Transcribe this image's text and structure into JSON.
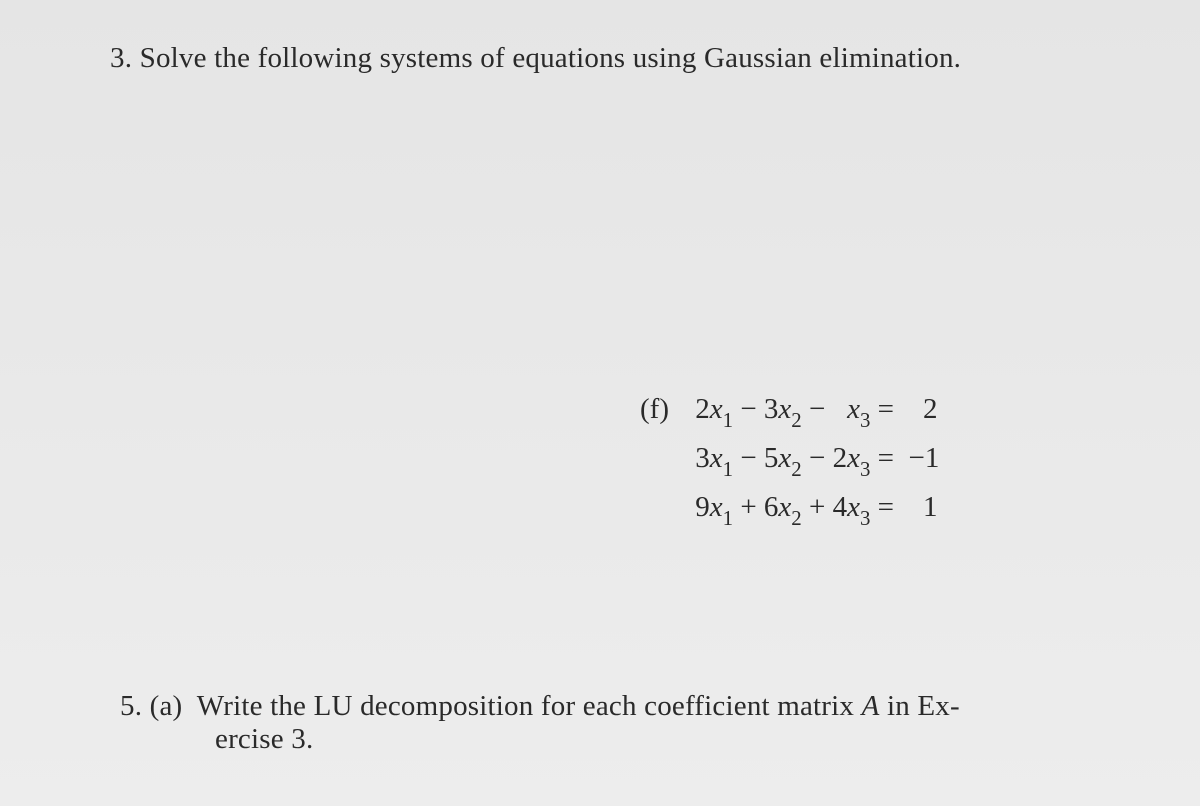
{
  "background_color": "#e8e8e8",
  "text_color": "#2a2a2a",
  "font_family": "Times New Roman",
  "base_fontsize": 29,
  "problem3": {
    "number": "3.",
    "text": "Solve the following systems of equations using Gaussian elimination."
  },
  "system": {
    "label": "(f)",
    "equations": [
      {
        "c1": "2",
        "v1": "x",
        "s1": "1",
        "op1": "−",
        "c2": "3",
        "v2": "x",
        "s2": "2",
        "op2": "−",
        "c3": "",
        "v3": "x",
        "s3": "3",
        "eq": "=",
        "rhs": "2"
      },
      {
        "c1": "3",
        "v1": "x",
        "s1": "1",
        "op1": "−",
        "c2": "5",
        "v2": "x",
        "s2": "2",
        "op2": "−",
        "c3": "2",
        "v3": "x",
        "s3": "3",
        "eq": "=",
        "rhs": "−1"
      },
      {
        "c1": "9",
        "v1": "x",
        "s1": "1",
        "op1": "+",
        "c2": "6",
        "v2": "x",
        "s2": "2",
        "op2": "+",
        "c3": "4",
        "v3": "x",
        "s3": "3",
        "eq": "=",
        "rhs": "1"
      }
    ]
  },
  "problem5": {
    "number": "5.",
    "part": "(a)",
    "line1_a": "Write the LU decomposition for each coefficient matrix ",
    "line1_b": "A",
    "line1_c": " in Ex-",
    "line2": "ercise 3."
  }
}
